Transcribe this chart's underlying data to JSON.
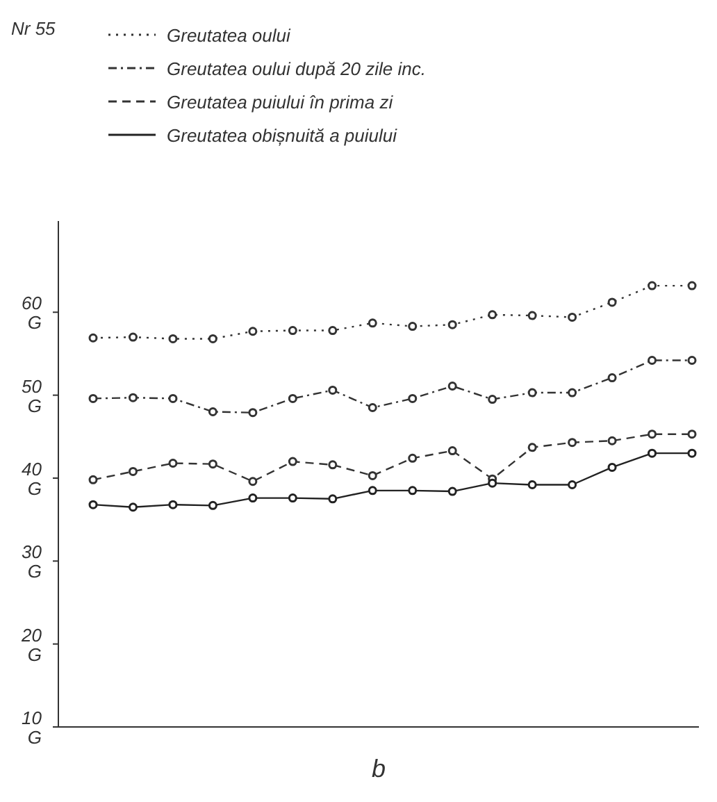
{
  "chart_data": {
    "type": "line",
    "title": "Nr 55",
    "xlabel": "b",
    "categories": [
      null,
      null,
      null,
      null,
      null,
      null,
      null,
      null,
      null,
      null,
      null,
      null,
      null,
      null,
      null,
      null
    ],
    "series": [
      {
        "name": "Greutatea oului",
        "color": "#333333",
        "line_style": "dotted",
        "values": [
          56.9,
          57.0,
          56.8,
          56.8,
          57.7,
          57.8,
          57.8,
          58.7,
          58.3,
          58.5,
          59.7,
          59.6,
          59.4,
          61.2,
          63.2,
          63.2
        ]
      },
      {
        "name": "Greutatea oului după 20 zile inc.",
        "color": "#333333",
        "line_style": "dashdot",
        "values": [
          49.6,
          49.7,
          49.6,
          48.0,
          47.9,
          49.6,
          50.6,
          48.5,
          49.6,
          51.1,
          49.5,
          50.3,
          50.3,
          52.1,
          54.2,
          54.2
        ]
      },
      {
        "name": "Greutatea puiului în prima zi",
        "color": "#333333",
        "line_style": "dashed",
        "values": [
          39.8,
          40.8,
          41.8,
          41.7,
          39.6,
          42.0,
          41.6,
          40.3,
          42.4,
          43.3,
          39.9,
          43.7,
          44.3,
          44.5,
          45.3,
          45.3
        ]
      },
      {
        "name": "Greutatea obișnuită a puiului",
        "color": "#222222",
        "line_style": "solid",
        "values": [
          36.8,
          36.5,
          36.8,
          36.7,
          37.6,
          37.6,
          37.5,
          38.5,
          38.5,
          38.4,
          39.4,
          39.2,
          39.2,
          41.3,
          43.0,
          43.0
        ]
      }
    ],
    "ylim": [
      10,
      71
    ],
    "yticks": [
      {
        "value": 10,
        "label": "10 G"
      },
      {
        "value": 20,
        "label": "20 G"
      },
      {
        "value": 30,
        "label": "30 G"
      },
      {
        "value": 40,
        "label": "40 G"
      },
      {
        "value": 50,
        "label": "50 G"
      },
      {
        "value": 60,
        "label": "60 G"
      }
    ],
    "marker": "circle",
    "legend": "top left"
  }
}
